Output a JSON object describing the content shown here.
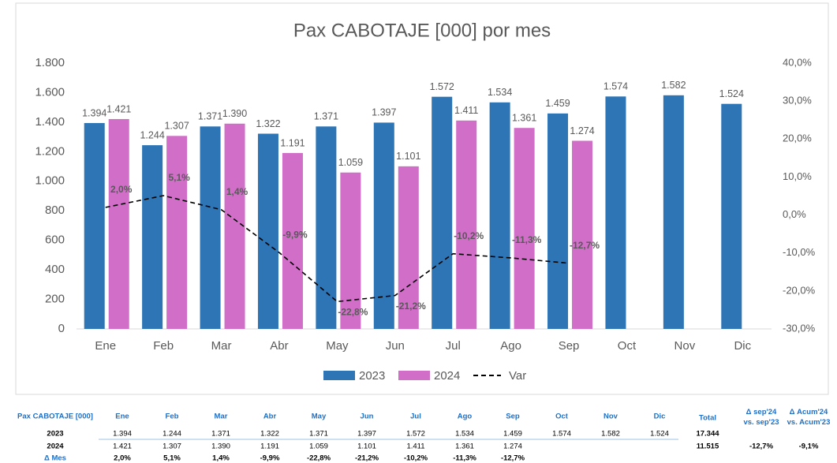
{
  "chart_data": {
    "type": "bar",
    "title": "Pax CABOTAJE [000] por mes",
    "categories": [
      "Ene",
      "Feb",
      "Mar",
      "Abr",
      "May",
      "Jun",
      "Jul",
      "Ago",
      "Sep",
      "Oct",
      "Nov",
      "Dic"
    ],
    "series": [
      {
        "name": "2023",
        "color": "#2e75b6",
        "values": [
          1394,
          1244,
          1371,
          1322,
          1371,
          1397,
          1572,
          1534,
          1459,
          1574,
          1582,
          1524
        ],
        "value_labels": [
          "1.394",
          "1.244",
          "1.371",
          "1.322",
          "1.371",
          "1.397",
          "1.572",
          "1.534",
          "1.459",
          "1.574",
          "1.582",
          "1.524"
        ]
      },
      {
        "name": "2024",
        "color": "#d16fc8",
        "values": [
          1421,
          1307,
          1390,
          1191,
          1059,
          1101,
          1411,
          1361,
          1274,
          null,
          null,
          null
        ],
        "value_labels": [
          "1.421",
          "1.307",
          "1.390",
          "1.191",
          "1.059",
          "1.101",
          "1.411",
          "1.361",
          "1.274",
          null,
          null,
          null
        ]
      },
      {
        "name": "Var",
        "type": "line",
        "axis": "y2",
        "color": "#000000",
        "values": [
          2.0,
          5.1,
          1.4,
          -9.9,
          -22.8,
          -21.2,
          -10.2,
          -11.3,
          -12.7,
          null,
          null,
          null
        ],
        "value_labels": [
          "2,0%",
          "5,1%",
          "1,4%",
          "-9,9%",
          "-22,8%",
          "-21,2%",
          "-10,2%",
          "-11,3%",
          "-12,7%",
          null,
          null,
          null
        ]
      }
    ],
    "ylim": [
      0,
      1800
    ],
    "yticks": [
      0,
      200,
      400,
      600,
      800,
      {
        "value": 1000,
        "label": "1.000"
      },
      {
        "value": 1200,
        "label": "1.200"
      },
      {
        "value": 1400,
        "label": "1.400"
      },
      {
        "value": 1600,
        "label": "1.600"
      },
      {
        "value": 1800,
        "label": "1.800"
      }
    ],
    "y2lim": [
      -30,
      40
    ],
    "y2ticks": [
      {
        "value": -30,
        "label": "-30,0%"
      },
      {
        "value": -20,
        "label": "-20,0%"
      },
      {
        "value": -10,
        "label": "-10,0%"
      },
      {
        "value": 0,
        "label": "0,0%"
      },
      {
        "value": 10,
        "label": "10,0%"
      },
      {
        "value": 20,
        "label": "20,0%"
      },
      {
        "value": 30,
        "label": "30,0%"
      },
      {
        "value": 40,
        "label": "40,0%"
      }
    ],
    "grid": false,
    "legend": "bottom"
  },
  "table": {
    "title": "Pax CABOTAJE [000]",
    "total_header": "Total",
    "delta_header": "Δ sep'24 vs. sep'23",
    "acum_header": "Δ Acum'24 vs. Acum'23",
    "var_label": "Δ Mes",
    "totals": [
      "17.344",
      "11.515"
    ],
    "delta": "-12,7%",
    "acum": "-9,1%"
  }
}
